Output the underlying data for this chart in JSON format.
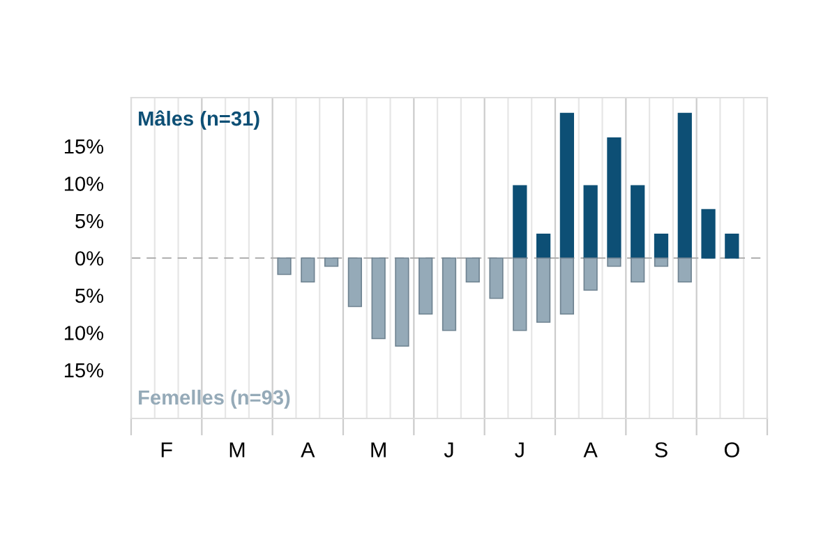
{
  "chart_data": {
    "type": "bar",
    "categories": [
      null,
      "F",
      null,
      null,
      "M",
      null,
      null,
      "A",
      null,
      null,
      "M",
      null,
      null,
      "J",
      null,
      null,
      "J",
      null,
      null,
      "A",
      null,
      null,
      "S",
      null,
      null,
      "O",
      null
    ],
    "series": [
      {
        "name": "Mâles (n=31)",
        "color": "#0d4f75",
        "values": [
          0,
          0,
          0,
          0,
          0,
          0,
          0,
          0,
          0,
          0,
          0,
          0,
          0,
          0,
          0,
          0,
          9.7,
          3.2,
          19.4,
          9.7,
          16.1,
          9.7,
          3.2,
          19.4,
          6.5,
          3.2,
          0
        ]
      },
      {
        "name": "Femelles (n=93)",
        "color": "#95aab8",
        "values": [
          0,
          0,
          0,
          0,
          0,
          0,
          -2.2,
          -3.2,
          -1.1,
          -6.5,
          -10.8,
          -11.8,
          -7.5,
          -9.7,
          -3.2,
          -5.4,
          -9.7,
          -8.6,
          -7.5,
          -4.3,
          -1.1,
          -3.2,
          -1.1,
          -3.2,
          0,
          0,
          0
        ]
      }
    ],
    "ylim": [
      -21.5,
      21.5
    ],
    "yticks": [
      {
        "value": 15,
        "label": "15%"
      },
      {
        "value": 10,
        "label": "10%"
      },
      {
        "value": 5,
        "label": "5%"
      },
      {
        "value": 0,
        "label": "0%"
      },
      {
        "value": -5,
        "label": "5%"
      },
      {
        "value": -10,
        "label": "10%"
      },
      {
        "value": -15,
        "label": "15%"
      }
    ],
    "ref_lines": [
      {
        "axis": "y",
        "value": 0,
        "color": "#b0b0b0",
        "line_style": "dashed"
      }
    ],
    "grid": "x"
  }
}
